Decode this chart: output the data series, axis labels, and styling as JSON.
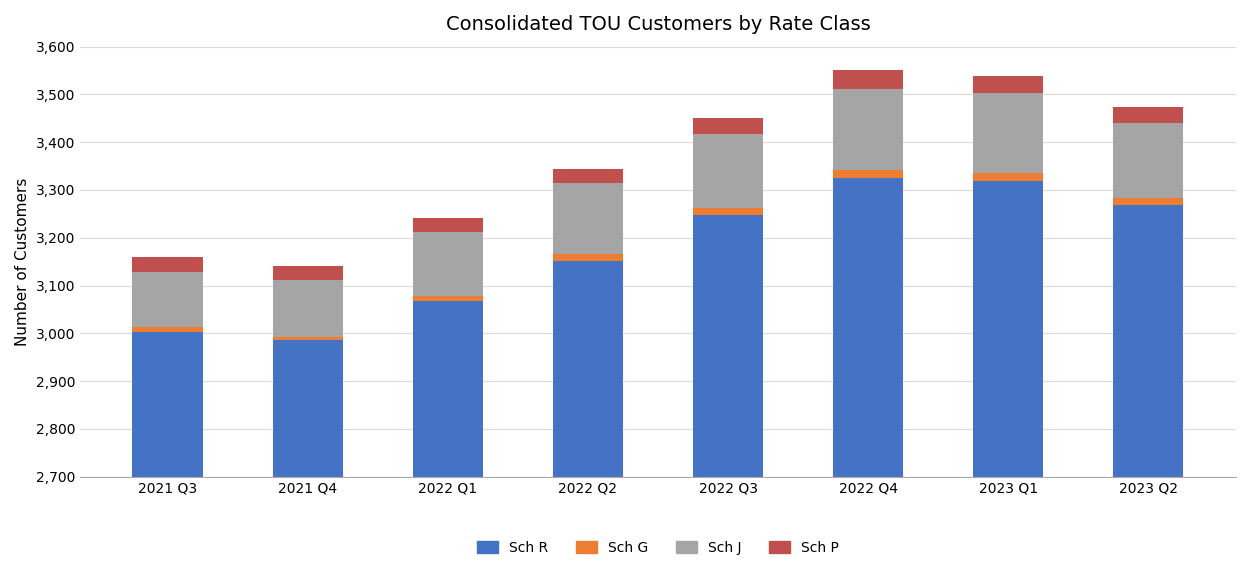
{
  "title": "Consolidated TOU Customers by Rate Class",
  "categories": [
    "2021 Q3",
    "2021 Q4",
    "2022 Q1",
    "2022 Q2",
    "2022 Q3",
    "2022 Q4",
    "2023 Q1",
    "2023 Q2"
  ],
  "sch_r": [
    3003,
    2985,
    3068,
    3152,
    3248,
    3325,
    3318,
    3268
  ],
  "sch_g": [
    10,
    8,
    10,
    15,
    15,
    17,
    17,
    15
  ],
  "sch_j": [
    115,
    118,
    135,
    148,
    155,
    170,
    168,
    158
  ],
  "sch_p": [
    32,
    30,
    28,
    28,
    32,
    40,
    35,
    32
  ],
  "colors": {
    "sch_r": "#4472C4",
    "sch_g": "#ED7D31",
    "sch_j": "#A5A5A5",
    "sch_p": "#C0504D"
  },
  "ylabel": "Number of Customers",
  "ymin": 2700,
  "ylim": [
    2700,
    3600
  ],
  "yticks": [
    2700,
    2800,
    2900,
    3000,
    3100,
    3200,
    3300,
    3400,
    3500,
    3600
  ],
  "legend_labels": [
    "Sch R",
    "Sch G",
    "Sch J",
    "Sch P"
  ],
  "background_color": "#FFFFFF",
  "grid_color": "#D9D9D9"
}
